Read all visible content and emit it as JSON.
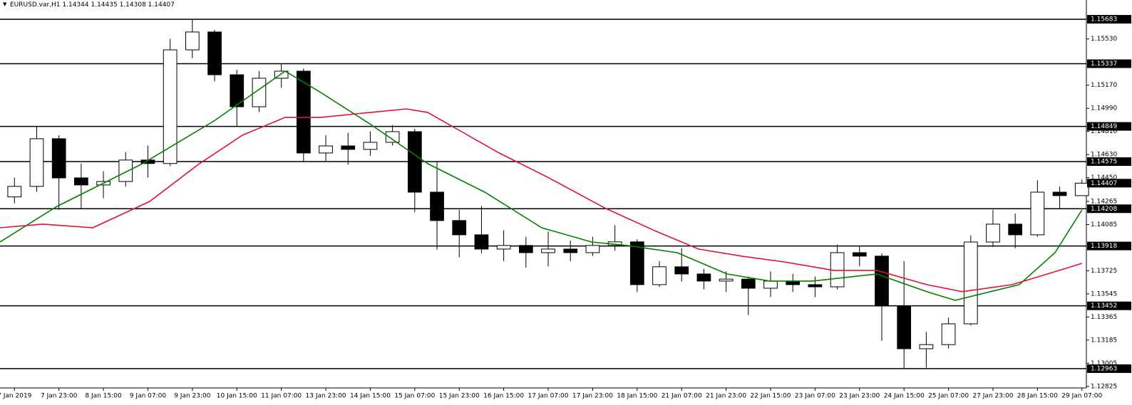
{
  "header": {
    "symbol": "EURUSD.var,H1",
    "open": 1.14344,
    "high": 1.14435,
    "low": 1.14308,
    "close": 1.14407
  },
  "chart_data": {
    "type": "candlestick",
    "up_color": "#ffffff",
    "down_color": "#000000",
    "wick_color": "#000000",
    "level_color": "#000000",
    "xlim": [
      -0.65,
      48.2
    ],
    "ylim": [
      1.12813,
      1.15833
    ],
    "open": [
      1.143,
      1.14382,
      1.14753,
      1.14448,
      1.14393,
      1.1442,
      1.14587,
      1.1456,
      1.15445,
      1.15584,
      1.15251,
      1.15002,
      1.15224,
      1.15279,
      1.14642,
      1.14697,
      1.1467,
      1.14725,
      1.14808,
      1.14337,
      1.14116,
      1.14005,
      1.13894,
      1.13922,
      1.13866,
      1.13894,
      1.13866,
      1.13922,
      1.1395,
      1.13617,
      1.13756,
      1.137,
      1.13645,
      1.1366,
      1.13589,
      1.13645,
      1.13617,
      1.136,
      1.13866,
      1.13839,
      1.13451,
      1.13118,
      1.1315,
      1.13312,
      1.13949,
      1.14088,
      1.14005,
      1.14337,
      1.1431
    ],
    "high": [
      1.1445,
      1.14849,
      1.1478,
      1.1456,
      1.145,
      1.1465,
      1.147,
      1.1553,
      1.15683,
      1.156,
      1.1529,
      1.1528,
      1.15337,
      1.153,
      1.1478,
      1.148,
      1.1481,
      1.1486,
      1.1483,
      1.14575,
      1.142,
      1.1423,
      1.1404,
      1.1399,
      1.1403,
      1.1396,
      1.1399,
      1.1408,
      1.1397,
      1.138,
      1.139,
      1.1374,
      1.1372,
      1.1368,
      1.1372,
      1.137,
      1.1368,
      1.1393,
      1.13918,
      1.1386,
      1.138,
      1.1325,
      1.1336,
      1.14,
      1.142,
      1.1417,
      1.1443,
      1.1438,
      1.14435
    ],
    "low": [
      1.1425,
      1.1434,
      1.142,
      1.14208,
      1.1429,
      1.1438,
      1.1445,
      1.1454,
      1.1538,
      1.152,
      1.14849,
      1.1496,
      1.1515,
      1.14575,
      1.1458,
      1.1455,
      1.1462,
      1.147,
      1.1418,
      1.1389,
      1.1383,
      1.1386,
      1.138,
      1.1375,
      1.1376,
      1.138,
      1.1384,
      1.1388,
      1.1356,
      1.136,
      1.1364,
      1.1358,
      1.1356,
      1.1338,
      1.1352,
      1.1356,
      1.1352,
      1.1358,
      1.1376,
      1.1318,
      1.12963,
      1.1297,
      1.1312,
      1.133,
      1.1391,
      1.139,
      1.1399,
      1.14208,
      1.14308
    ],
    "close": [
      1.14382,
      1.14753,
      1.14448,
      1.14393,
      1.1442,
      1.14587,
      1.1456,
      1.15445,
      1.15584,
      1.15251,
      1.15002,
      1.15224,
      1.15279,
      1.14642,
      1.14697,
      1.1467,
      1.14725,
      1.14808,
      1.14337,
      1.14116,
      1.14005,
      1.13894,
      1.13922,
      1.13866,
      1.13894,
      1.13866,
      1.13922,
      1.1395,
      1.13617,
      1.13756,
      1.137,
      1.13645,
      1.1366,
      1.13589,
      1.13645,
      1.13617,
      1.136,
      1.13866,
      1.13839,
      1.13451,
      1.13118,
      1.1315,
      1.13312,
      1.13949,
      1.14088,
      1.14005,
      1.14337,
      1.1431,
      1.14407
    ],
    "lines": [
      {
        "color": "#008000",
        "x": [
          -0.65,
          1.91,
          5.76,
          8.97,
          12.17,
          13.77,
          16.02,
          18.58,
          21.15,
          23.71,
          25.95,
          27.56,
          29.8,
          32.04,
          33.97,
          35.89,
          38.77,
          41.02,
          42.3,
          45.18,
          46.79,
          48.0
        ],
        "values": [
          1.13949,
          1.14226,
          1.14559,
          1.14891,
          1.15279,
          1.15113,
          1.14864,
          1.14559,
          1.14337,
          1.1406,
          1.13949,
          1.13922,
          1.13866,
          1.137,
          1.13645,
          1.13645,
          1.137,
          1.13562,
          1.13495,
          1.13617,
          1.13866,
          1.14199
        ]
      },
      {
        "color": "#e0103a",
        "x": [
          -0.65,
          1.27,
          3.52,
          6.08,
          8.32,
          10.25,
          12.17,
          13.77,
          16.02,
          17.62,
          18.58,
          21.79,
          24.03,
          26.59,
          28.84,
          30.76,
          32.68,
          34.61,
          36.85,
          38.77,
          41.02,
          42.62,
          44.86,
          46.46,
          48.0
        ],
        "values": [
          1.1406,
          1.14088,
          1.1406,
          1.14265,
          1.14559,
          1.1478,
          1.14919,
          1.14919,
          1.14958,
          1.14985,
          1.14958,
          1.14642,
          1.14448,
          1.1421,
          1.14033,
          1.13894,
          1.13839,
          1.13794,
          1.13728,
          1.13728,
          1.13617,
          1.13562,
          1.13617,
          1.137,
          1.13783
        ]
      }
    ],
    "levels": [
      1.15683,
      1.15337,
      1.14849,
      1.14575,
      1.14208,
      1.13918,
      1.13452,
      1.12963
    ],
    "yticks": [
      {
        "value": 1.1553,
        "label": "1.15530"
      },
      {
        "value": 1.1517,
        "label": "1.15170"
      },
      {
        "value": 1.1499,
        "label": "1.14990"
      },
      {
        "value": 1.1481,
        "label": "1.14810"
      },
      {
        "value": 1.1463,
        "label": "1.14630"
      },
      {
        "value": 1.1445,
        "label": "1.14450"
      },
      1.14265,
      1.14085,
      1.13725,
      1.13545,
      1.13365,
      1.13185,
      {
        "value": 1.13005,
        "label": "1.13005"
      },
      1.12825
    ],
    "xticks": [
      {
        "value": 0,
        "label": "7 Jan 2019"
      },
      {
        "value": 2,
        "label": "7 Jan 23:00"
      },
      {
        "value": 4,
        "label": "8 Jan 15:00"
      },
      {
        "value": 6,
        "label": "9 Jan 07:00"
      },
      {
        "value": 8,
        "label": "9 Jan 23:00"
      },
      {
        "value": 10,
        "label": "10 Jan 15:00"
      },
      {
        "value": 12,
        "label": "11 Jan 07:00"
      },
      {
        "value": 14,
        "label": "13 Jan 23:00"
      },
      {
        "value": 16,
        "label": "14 Jan 15:00"
      },
      {
        "value": 18,
        "label": "15 Jan 07:00"
      },
      {
        "value": 20,
        "label": "15 Jan 23:00"
      },
      {
        "value": 22,
        "label": "16 Jan 15:00"
      },
      {
        "value": 24,
        "label": "17 Jan 07:00"
      },
      {
        "value": 26,
        "label": "17 Jan 23:00"
      },
      {
        "value": 28,
        "label": "18 Jan 15:00"
      },
      {
        "value": 30,
        "label": "21 Jan 07:00"
      },
      {
        "value": 32,
        "label": "21 Jan 23:00"
      },
      {
        "value": 34,
        "label": "22 Jan 15:00"
      },
      {
        "value": 36,
        "label": "23 Jan 07:00"
      },
      {
        "value": 38,
        "label": "23 Jan 23:00"
      },
      {
        "value": 40,
        "label": "24 Jan 15:00"
      },
      {
        "value": 42,
        "label": "25 Jan 07:00"
      },
      {
        "value": 44,
        "label": "27 Jan 23:00"
      },
      {
        "value": 46,
        "label": "28 Jan 15:00"
      },
      {
        "value": 48,
        "label": "29 Jan 07:00"
      }
    ]
  }
}
